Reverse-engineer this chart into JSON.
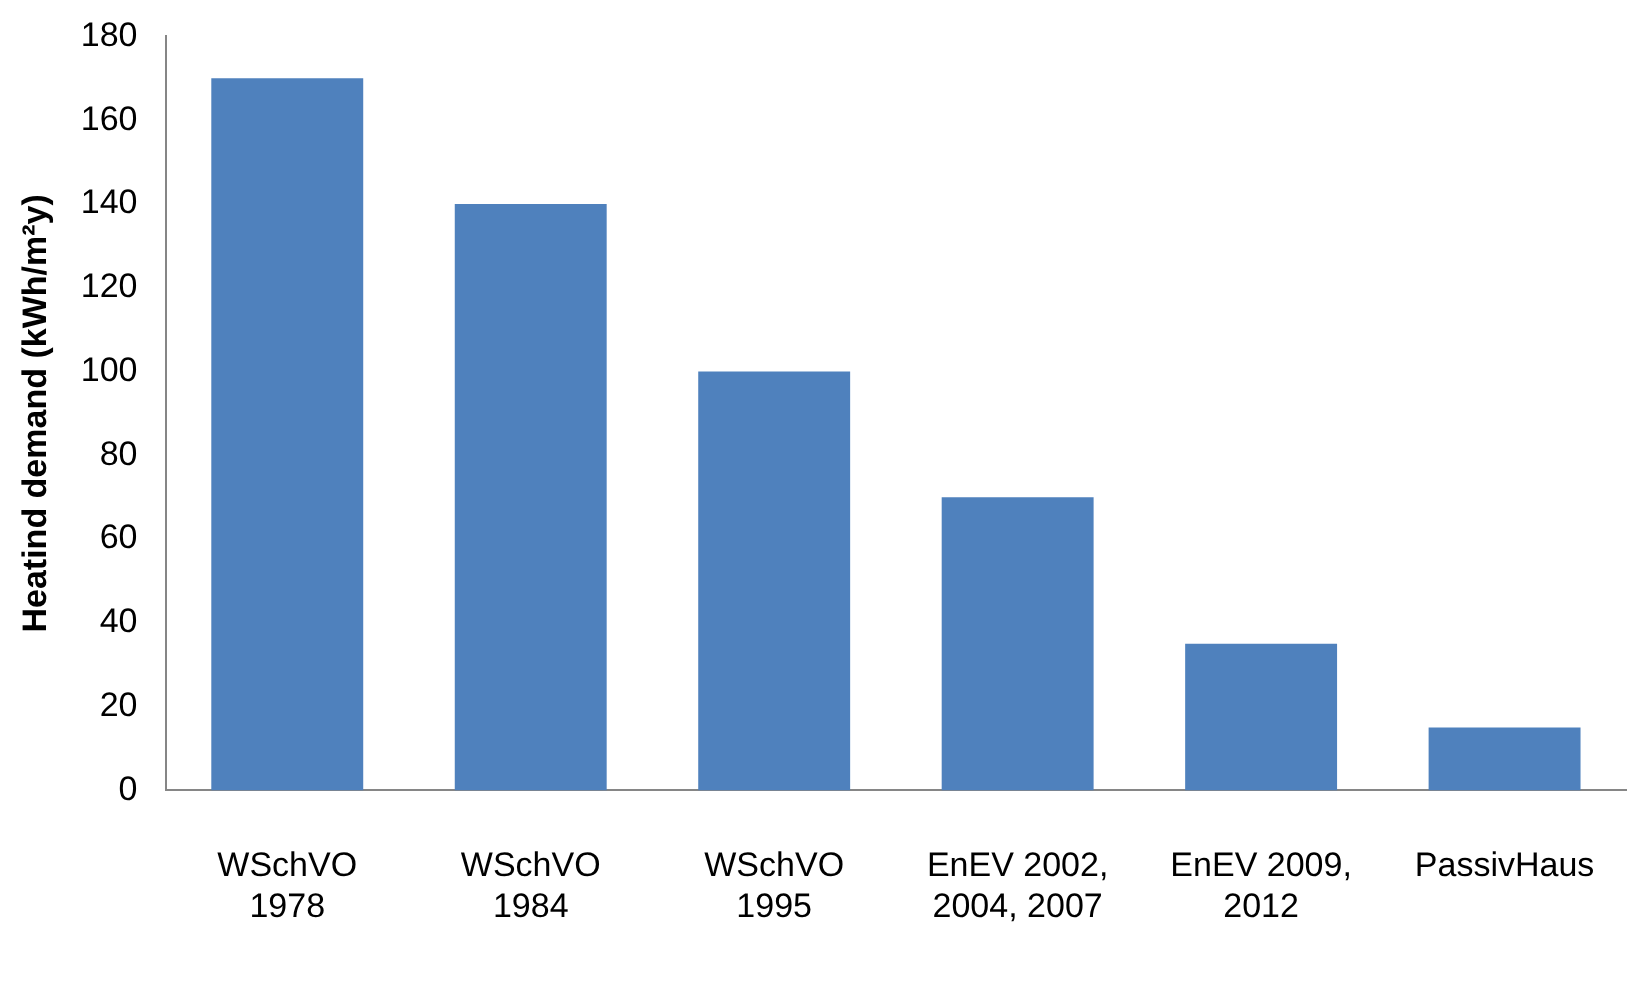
{
  "chart_data": {
    "type": "bar",
    "ylabel": "Heatind demand (kWh/m²y)",
    "categories": [
      "WSchVO\n1978",
      "WSchVO\n1984",
      "WSchVO\n1995",
      "EnEV 2002,\n2004, 2007",
      "EnEV 2009,\n2012",
      "PassivHaus"
    ],
    "values": [
      170,
      140,
      100,
      70,
      35,
      15
    ],
    "color": "#4f81bd",
    "ylim": [
      0,
      180
    ],
    "yticks": [
      0,
      20,
      40,
      60,
      80,
      100,
      120,
      140,
      160,
      180
    ],
    "grid": false,
    "legend": false
  }
}
